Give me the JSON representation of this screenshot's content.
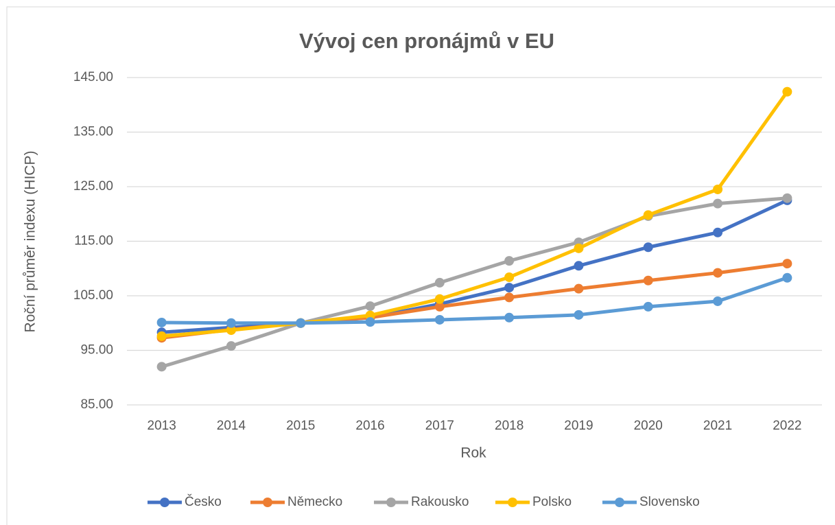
{
  "chart_data": {
    "type": "line",
    "title": "Vývoj cen pronájmů v EU",
    "x_label": "Rok",
    "y_label": "Roční průměr indexu (HICP)",
    "categories": [
      "2013",
      "2014",
      "2015",
      "2016",
      "2017",
      "2018",
      "2019",
      "2020",
      "2021",
      "2022"
    ],
    "series": [
      {
        "name": "Česko",
        "color": "#4472C4",
        "values": [
          98.3,
          99.2,
          100,
          101,
          103.5,
          106.5,
          110.5,
          113.9,
          116.6,
          122.5
        ]
      },
      {
        "name": "Německo",
        "color": "#ED7D31",
        "values": [
          97.3,
          98.8,
          100,
          101,
          103.0,
          104.7,
          106.3,
          107.8,
          109.2,
          110.9
        ]
      },
      {
        "name": "Rakousko",
        "color": "#A5A5A5",
        "values": [
          92.0,
          95.8,
          100,
          103.1,
          107.4,
          111.4,
          114.8,
          119.6,
          121.9,
          122.9
        ]
      },
      {
        "name": "Polsko",
        "color": "#FFC000",
        "values": [
          97.6,
          98.7,
          100,
          101.4,
          104.4,
          108.4,
          113.7,
          119.8,
          124.5,
          142.4
        ]
      },
      {
        "name": "Slovensko",
        "color": "#5B9BD5",
        "values": [
          100.1,
          100.0,
          100,
          100.2,
          100.6,
          101.0,
          101.5,
          103.0,
          104.0,
          108.3
        ]
      }
    ],
    "ylim": [
      85,
      145
    ],
    "yticks": [
      {
        "value": 85,
        "label": "85.00"
      },
      {
        "value": 95,
        "label": "95.00"
      },
      {
        "value": 105,
        "label": "105.00"
      },
      {
        "value": 115,
        "label": "115.00"
      },
      {
        "value": 125,
        "label": "125.00"
      },
      {
        "value": 135,
        "label": "135.00"
      },
      {
        "value": 145,
        "label": "145.00"
      }
    ],
    "grid": true,
    "legend": "bottom"
  }
}
